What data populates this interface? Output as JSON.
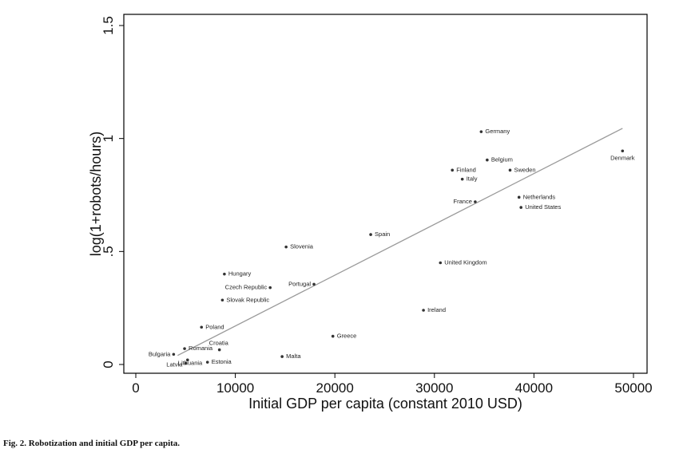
{
  "chart_data": {
    "type": "scatter",
    "xlabel": "Initial GDP per capita (constant 2010 USD)",
    "ylabel": "log(1+robots/hours)",
    "xlim": [
      0,
      50000
    ],
    "ylim": [
      0,
      1.5
    ],
    "x_ticks": [
      0,
      10000,
      20000,
      30000,
      40000,
      50000
    ],
    "x_tick_labels": [
      "0",
      "10000",
      "20000",
      "30000",
      "40000",
      "50000"
    ],
    "y_ticks": [
      0,
      0.5,
      1,
      1.5
    ],
    "y_tick_labels": [
      "0",
      ".5",
      "1",
      "1.5"
    ],
    "grid": false,
    "points": [
      {
        "label": "Germany",
        "x": 34700,
        "y": 1.03
      },
      {
        "label": "Belgium",
        "x": 35300,
        "y": 0.905
      },
      {
        "label": "Finland",
        "x": 31800,
        "y": 0.86
      },
      {
        "label": "Sweden",
        "x": 37600,
        "y": 0.86
      },
      {
        "label": "Italy",
        "x": 32800,
        "y": 0.82
      },
      {
        "label": "Denmark",
        "x": 48900,
        "y": 0.945
      },
      {
        "label": "Netherlands",
        "x": 38500,
        "y": 0.74
      },
      {
        "label": "France",
        "x": 34100,
        "y": 0.72
      },
      {
        "label": "United States",
        "x": 38700,
        "y": 0.695
      },
      {
        "label": "Spain",
        "x": 23600,
        "y": 0.575
      },
      {
        "label": "Slovenia",
        "x": 15100,
        "y": 0.52
      },
      {
        "label": "United Kingdom",
        "x": 30600,
        "y": 0.45
      },
      {
        "label": "Hungary",
        "x": 8900,
        "y": 0.4
      },
      {
        "label": "Czech Republic",
        "x": 13500,
        "y": 0.34
      },
      {
        "label": "Portugal",
        "x": 17900,
        "y": 0.355
      },
      {
        "label": "Slovak Republic",
        "x": 8700,
        "y": 0.285
      },
      {
        "label": "Ireland",
        "x": 28900,
        "y": 0.24
      },
      {
        "label": "Poland",
        "x": 6600,
        "y": 0.165
      },
      {
        "label": "Greece",
        "x": 19800,
        "y": 0.125
      },
      {
        "label": "Croatia",
        "x": 8400,
        "y": 0.065
      },
      {
        "label": "Romania",
        "x": 4900,
        "y": 0.07
      },
      {
        "label": "Bulgaria",
        "x": 3800,
        "y": 0.045
      },
      {
        "label": "Lithuania",
        "x": 5200,
        "y": 0.02
      },
      {
        "label": "Malta",
        "x": 14700,
        "y": 0.035
      },
      {
        "label": "Latvia",
        "x": 5000,
        "y": 0.005
      },
      {
        "label": "Estonia",
        "x": 7200,
        "y": 0.01
      }
    ],
    "fit_line": {
      "x": [
        4200,
        48900
      ],
      "y": [
        0.04,
        1.045
      ]
    }
  },
  "caption": {
    "fig": "Fig. 2.",
    "text": "Robotization and initial GDP per capita."
  }
}
